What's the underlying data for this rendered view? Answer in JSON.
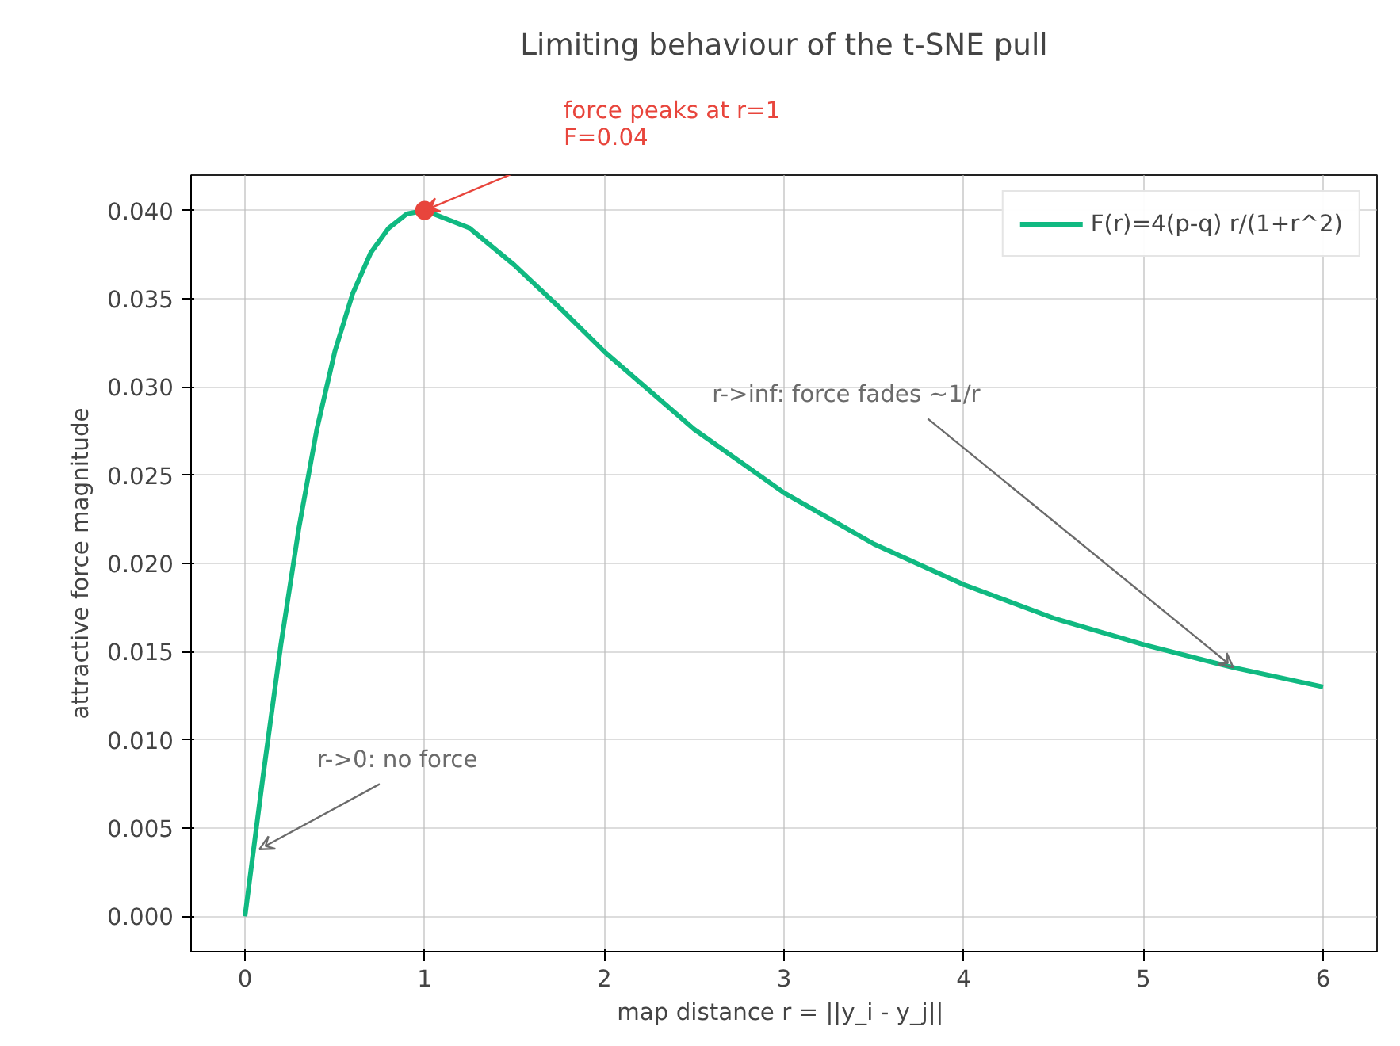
{
  "chart_data": {
    "type": "line",
    "title": "Limiting behaviour of the t-SNE pull",
    "xlabel": "map distance  r = ||y_i - y_j||",
    "ylabel": "attractive force magnitude",
    "series": [
      {
        "name": "F(r)=4(p-q) r/(1+r^2)",
        "color": "#10b981",
        "x": [
          0,
          0.1,
          0.2,
          0.3,
          0.4,
          0.5,
          0.6,
          0.7,
          0.8,
          0.9,
          1.0,
          1.25,
          1.5,
          1.75,
          2,
          2.5,
          3,
          3.5,
          4,
          4.5,
          5,
          5.5,
          6
        ],
        "values": [
          0,
          0.0079,
          0.0154,
          0.022,
          0.0276,
          0.032,
          0.0353,
          0.0376,
          0.039,
          0.0398,
          0.04,
          0.039,
          0.0369,
          0.0345,
          0.032,
          0.0276,
          0.024,
          0.0211,
          0.0188,
          0.0169,
          0.0154,
          0.0141,
          0.013
        ]
      },
      {
        "type": "scatter",
        "color": "#e8453c",
        "x": [
          1
        ],
        "values": [
          0.04
        ],
        "marker": "circle"
      }
    ],
    "annotations": [
      {
        "text": "force peaks at r=1\nF=0.04",
        "x": 1,
        "y": 0.04
      },
      {
        "text": "r->inf: force fades ~1/r",
        "x": 5.5,
        "y": 0.0141
      },
      {
        "text": "r->0: no force",
        "x": 0.08,
        "y": 0.0038
      }
    ],
    "xlim": [
      -0.3,
      6.3
    ],
    "xticks": [
      0,
      1,
      2,
      3,
      4,
      5,
      6
    ],
    "ylim": [
      -0.002,
      0.042
    ],
    "yticks": [
      {
        "value": 0,
        "label": "0.000"
      },
      {
        "value": 0.005,
        "label": "0.005"
      },
      {
        "value": 0.01,
        "label": "0.010"
      },
      {
        "value": 0.015,
        "label": "0.015"
      },
      {
        "value": 0.02,
        "label": "0.020"
      },
      {
        "value": 0.025,
        "label": "0.025"
      },
      {
        "value": 0.03,
        "label": "0.030"
      },
      {
        "value": 0.035,
        "label": "0.035"
      },
      {
        "value": 0.04,
        "label": "0.040"
      }
    ],
    "grid": true,
    "legend": "top right",
    "line_style": "solid"
  }
}
